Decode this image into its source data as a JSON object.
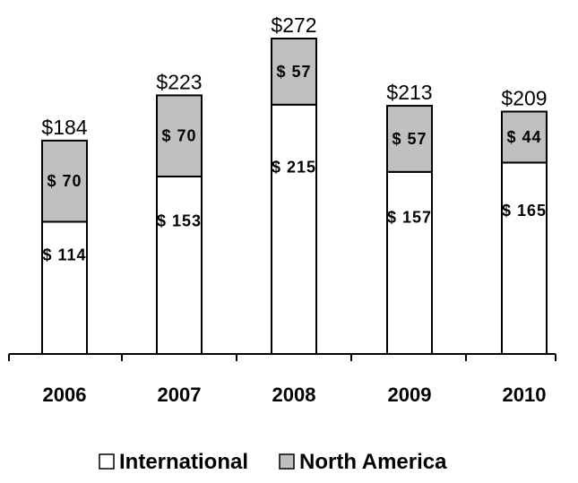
{
  "chart_data": {
    "type": "bar",
    "stacked": true,
    "title": "",
    "xlabel": "",
    "ylabel": "",
    "categories": [
      "2006",
      "2007",
      "2008",
      "2009",
      "2010"
    ],
    "series": [
      {
        "name": "International",
        "values": [
          114,
          153,
          215,
          157,
          165
        ],
        "labels": [
          "$ 114",
          "$ 153",
          "$ 215",
          "$ 157",
          "$ 165"
        ],
        "color": "#ffffff"
      },
      {
        "name": "North America",
        "values": [
          70,
          70,
          57,
          57,
          44
        ],
        "labels": [
          "$ 70",
          "$ 70",
          "$ 57",
          "$ 57",
          "$ 44"
        ],
        "color": "#c0c0c0"
      }
    ],
    "totals": [
      184,
      223,
      272,
      213,
      209
    ],
    "total_labels": [
      "$184",
      "$223",
      "$272",
      "$213",
      "$209"
    ],
    "ylim": [
      0,
      272
    ],
    "grid": false,
    "legend_position": "bottom"
  }
}
